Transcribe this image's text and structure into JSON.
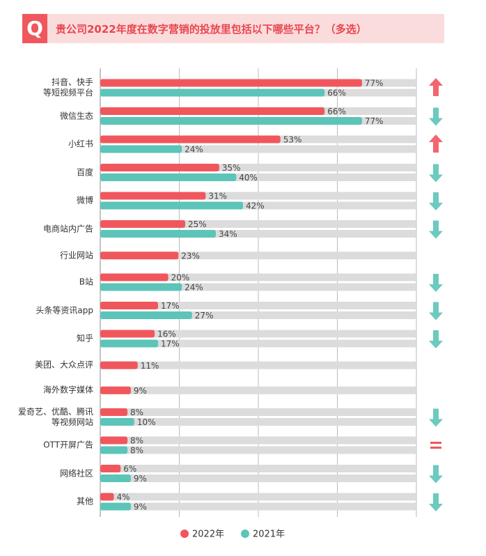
{
  "chart_data": {
    "type": "bar",
    "orientation": "horizontal",
    "title": "贵公司2022年度在数字营销的投放里包括以下哪些平台？（多选）",
    "badge": "Q",
    "categories": [
      "抖音、快手\n等短视频平台",
      "微信生态",
      "小红书",
      "百度",
      "微博",
      "电商站内广告",
      "行业网站",
      "B站",
      "头条等资讯app",
      "知乎",
      "美团、大众点评",
      "海外数字媒体",
      "爱奇艺、优酷、腾讯\n等视频网站",
      "OTT开屏广告",
      "网络社区",
      "其他"
    ],
    "series": [
      {
        "name": "2022年",
        "color": "#f0575d",
        "values": [
          77,
          66,
          53,
          35,
          31,
          25,
          23,
          20,
          17,
          16,
          11,
          9,
          8,
          8,
          6,
          4
        ],
        "value_labels": [
          "77%",
          "66%",
          "53%",
          "35%",
          "31%",
          "25%",
          "23%",
          "20%",
          "17%",
          "16%",
          "11%",
          "9%",
          "8%",
          "8%",
          "6%",
          "4%"
        ]
      },
      {
        "name": "2021年",
        "color": "#5cc4b8",
        "values": [
          66,
          77,
          24,
          40,
          42,
          34,
          null,
          24,
          27,
          17,
          null,
          null,
          10,
          8,
          9,
          9
        ],
        "value_labels": [
          "66%",
          "77%",
          "24%",
          "40%",
          "42%",
          "34%",
          null,
          "24%",
          "27%",
          "17%",
          null,
          null,
          "10%",
          "8%",
          "9%",
          "9%"
        ]
      }
    ],
    "xlim": [
      0,
      93
    ],
    "grid": true
  }
}
